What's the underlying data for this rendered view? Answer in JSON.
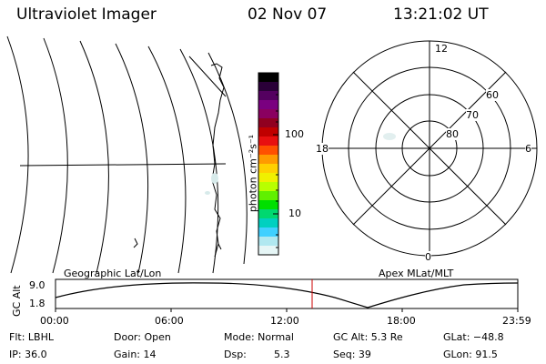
{
  "header": {
    "title": "Ultraviolet Imager",
    "date": "02 Nov 07",
    "time": "13:21:02 UT"
  },
  "colorbar": {
    "label": "photon cm⁻²s⁻¹",
    "ticks": [
      "100",
      "10"
    ],
    "colors": [
      "#000000",
      "#2a0038",
      "#540060",
      "#7a0080",
      "#8a0060",
      "#900020",
      "#c00000",
      "#e81010",
      "#ff5000",
      "#ff9a00",
      "#ffd000",
      "#f0f000",
      "#b8ff00",
      "#60f000",
      "#00e000",
      "#00d870",
      "#00d0c0",
      "#40d0ff",
      "#b0e8f0",
      "#e6f6f6"
    ]
  },
  "polar": {
    "mlt_labels": [
      "12",
      "18",
      "6",
      "0"
    ],
    "lat_labels": [
      "60",
      "70",
      "80"
    ]
  },
  "timeline": {
    "left_label": "Geographic Lat/Lon",
    "right_label": "Apex MLat/MLT",
    "y_axis_title": "GC Alt",
    "y_ticks": [
      "9.0",
      "1.8"
    ],
    "x_ticks": [
      "00:00",
      "06:00",
      "12:00",
      "18:00",
      "23:59"
    ],
    "marker_color": "#cc0000"
  },
  "info": {
    "flt": "Flt: LBHL",
    "door": "Door: Open",
    "mode": "Mode: Normal",
    "gc_alt": "GC Alt: 5.3 Re",
    "glat": "GLat: −48.8",
    "ip": "IP: 36.0",
    "gain": "Gain: 14",
    "dsp_label": "Dsp:",
    "dsp_value": "5.3",
    "seq": "Seq: 39",
    "glon": "GLon:  91.5"
  }
}
